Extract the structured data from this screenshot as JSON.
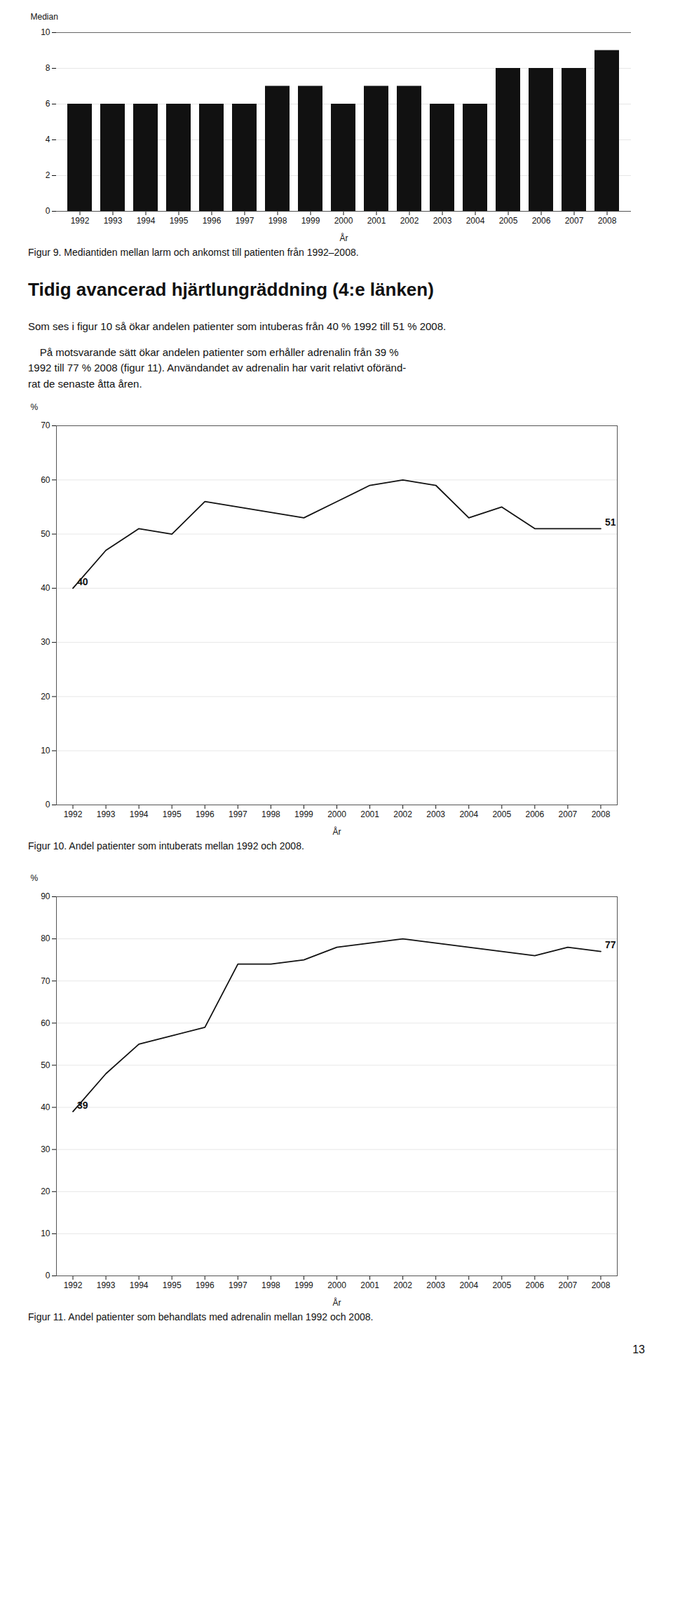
{
  "heading": "Tidig avancerad hjärtlungräddning (4:e länken)",
  "paragraphs": [
    "Som ses i figur 10 så ökar andelen patienter som intuberas från 40 % 1992 till 51 % 2008.",
    "    På motsvarande sätt ökar andelen patienter som erhåller adrenalin från 39 %\n1992 till 77 % 2008 (figur 11). Användandet av adrenalin har varit relativt oföränd-\nrat de senaste åtta åren."
  ],
  "page_number": "13",
  "chart_data": [
    {
      "type": "bar",
      "caption": "Figur 9. Mediantiden mellan larm och ankomst till patienten från 1992–2008.",
      "ylabel": "Median",
      "xlabel": "År",
      "categories": [
        "1992",
        "1993",
        "1994",
        "1995",
        "1996",
        "1997",
        "1998",
        "1999",
        "2000",
        "2001",
        "2002",
        "2003",
        "2004",
        "2005",
        "2006",
        "2007",
        "2008"
      ],
      "values": [
        6,
        6,
        6,
        6,
        6,
        6,
        7,
        7,
        6,
        7,
        7,
        6,
        6,
        8,
        8,
        8,
        9
      ],
      "color": "#111111",
      "ylim": [
        0,
        10
      ],
      "yticks": [
        0,
        2,
        4,
        6,
        8,
        10
      ],
      "grid": true
    },
    {
      "type": "line",
      "caption": "Figur 10. Andel patienter som intuberats mellan 1992 och 2008.",
      "ylabel": "%",
      "xlabel": "År",
      "x": [
        1992,
        1993,
        1994,
        1995,
        1996,
        1997,
        1998,
        1999,
        2000,
        2001,
        2002,
        2003,
        2004,
        2005,
        2006,
        2007,
        2008
      ],
      "values": [
        40,
        47,
        51,
        50,
        56,
        55,
        54,
        53,
        56,
        59,
        60,
        59,
        53,
        55,
        51,
        51,
        51
      ],
      "color": "#111111",
      "xlim": [
        1991.5,
        2008.5
      ],
      "xticks": [
        1992,
        1993,
        1994,
        1995,
        1996,
        1997,
        1998,
        1999,
        2000,
        2001,
        2002,
        2003,
        2004,
        2005,
        2006,
        2007,
        2008
      ],
      "ylim": [
        0,
        70
      ],
      "yticks": [
        0,
        10,
        20,
        30,
        40,
        50,
        60,
        70
      ],
      "grid": true,
      "annotations": [
        {
          "text": "40",
          "x": 1992,
          "y": 40
        },
        {
          "text": "51",
          "x": 2008,
          "y": 51
        }
      ]
    },
    {
      "type": "line",
      "caption": "Figur 11. Andel patienter som behandlats med adrenalin mellan 1992 och 2008.",
      "ylabel": "%",
      "xlabel": "År",
      "x": [
        1992,
        1993,
        1994,
        1995,
        1996,
        1997,
        1998,
        1999,
        2000,
        2001,
        2002,
        2003,
        2004,
        2005,
        2006,
        2007,
        2008
      ],
      "values": [
        39,
        48,
        55,
        57,
        59,
        74,
        74,
        75,
        78,
        79,
        80,
        79,
        78,
        77,
        76,
        78,
        77
      ],
      "color": "#111111",
      "xlim": [
        1991.5,
        2008.5
      ],
      "xticks": [
        1992,
        1993,
        1994,
        1995,
        1996,
        1997,
        1998,
        1999,
        2000,
        2001,
        2002,
        2003,
        2004,
        2005,
        2006,
        2007,
        2008
      ],
      "ylim": [
        0,
        90
      ],
      "yticks": [
        0,
        10,
        20,
        30,
        40,
        50,
        60,
        70,
        80,
        90
      ],
      "grid": true,
      "annotations": [
        {
          "text": "39",
          "x": 1992,
          "y": 39
        },
        {
          "text": "77",
          "x": 2008,
          "y": 77
        }
      ]
    }
  ]
}
